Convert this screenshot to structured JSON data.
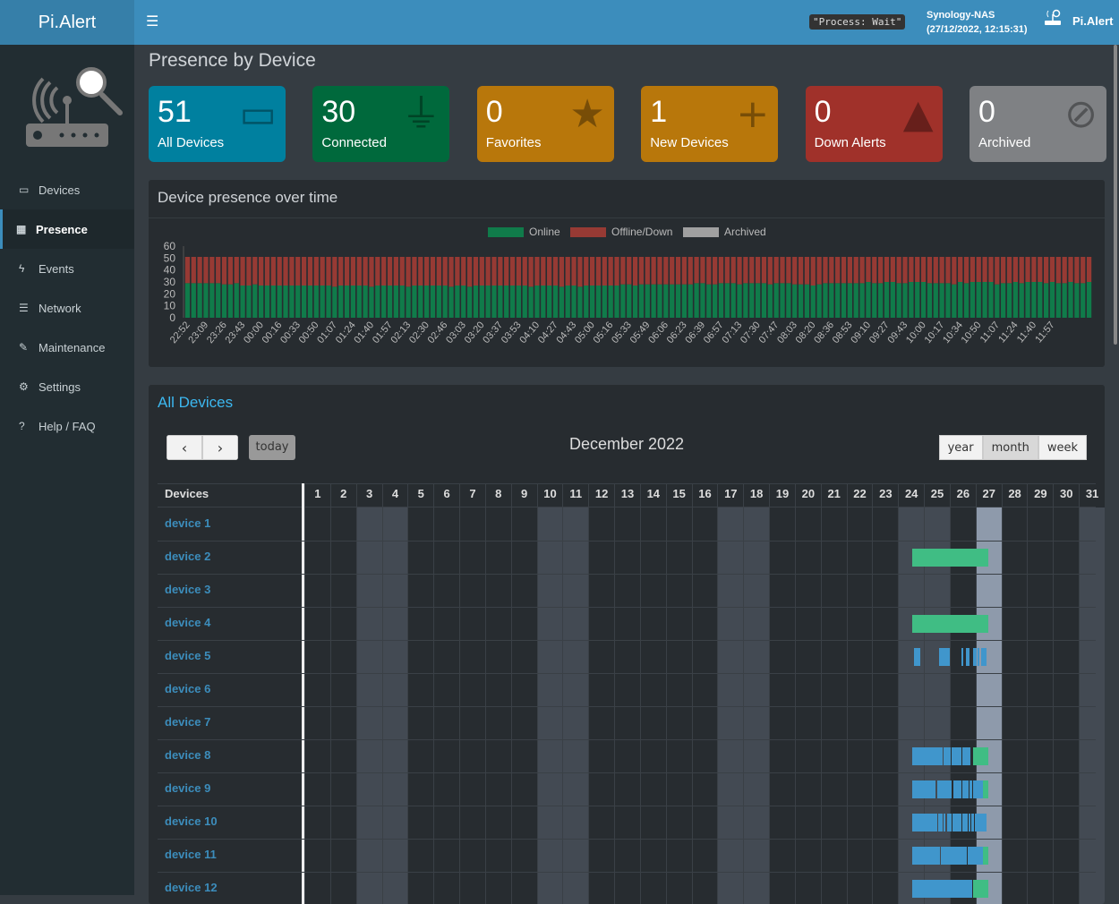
{
  "header": {
    "app_name": "Pi.Alert",
    "status": "\"Process: Wait\"",
    "host": "Synology-NAS",
    "datetime": "(27/12/2022, 12:15:31)",
    "user": "Pi.Alert"
  },
  "sidebar": {
    "items": [
      {
        "label": "Devices",
        "icon": "laptop-icon"
      },
      {
        "label": "Presence",
        "icon": "calendar-icon",
        "active": true
      },
      {
        "label": "Events",
        "icon": "bolt-icon"
      },
      {
        "label": "Network",
        "icon": "server-icon"
      },
      {
        "label": "Maintenance",
        "icon": "wrench-icon"
      },
      {
        "label": "Settings",
        "icon": "gear-icon"
      },
      {
        "label": "Help / FAQ",
        "icon": "question-icon"
      }
    ]
  },
  "page_title": "Presence by Device",
  "cards": [
    {
      "value": "51",
      "label": "All Devices",
      "icon": "laptop-icon",
      "color": "#00809f"
    },
    {
      "value": "30",
      "label": "Connected",
      "icon": "plug-icon",
      "color": "#00693c"
    },
    {
      "value": "0",
      "label": "Favorites",
      "icon": "star-icon",
      "color": "#b8770b"
    },
    {
      "value": "1",
      "label": "New Devices",
      "icon": "plus-icon",
      "color": "#b8770b"
    },
    {
      "value": "0",
      "label": "Down Alerts",
      "icon": "warning-icon",
      "color": "#a0312a"
    },
    {
      "value": "0",
      "label": "Archived",
      "icon": "eye-slash-icon",
      "color": "#7f8184"
    }
  ],
  "chart_box": {
    "title": "Device presence over time"
  },
  "chart_data": {
    "type": "bar",
    "stacked": true,
    "ylim": [
      0,
      60
    ],
    "yticks": [
      0,
      10,
      20,
      30,
      40,
      50,
      60
    ],
    "legend": "top",
    "series": [
      {
        "name": "Online",
        "color": "#107b4a",
        "values": [
          29,
          29,
          29,
          29,
          29,
          29,
          28,
          28,
          29,
          27,
          27,
          28,
          27,
          27,
          27,
          27,
          27,
          27,
          27,
          27,
          27,
          27,
          27,
          27,
          26,
          27,
          27,
          27,
          27,
          27,
          26,
          27,
          27,
          27,
          27,
          27,
          26,
          27,
          27,
          27,
          27,
          27,
          27,
          26,
          27,
          27,
          26,
          27,
          27,
          27,
          27,
          27,
          27,
          27,
          27,
          27,
          26,
          27,
          27,
          27,
          27,
          26,
          27,
          27,
          26,
          27,
          27,
          27,
          27,
          27,
          27,
          28,
          28,
          27,
          28,
          28,
          28,
          28,
          28,
          28,
          28,
          28,
          28,
          29,
          29,
          28,
          28,
          29,
          29,
          29,
          28,
          29,
          29,
          29,
          29,
          28,
          29,
          29,
          29,
          28,
          28,
          28,
          27,
          28,
          29,
          29,
          29,
          29,
          29,
          29,
          29,
          30,
          29,
          29,
          30,
          30,
          29,
          29,
          30,
          30,
          30,
          29,
          29,
          29,
          29,
          28,
          30,
          29,
          30,
          30,
          30,
          30,
          28,
          29,
          29,
          30,
          29,
          30,
          30,
          30,
          29,
          30,
          29,
          29,
          30,
          29,
          29,
          30
        ]
      },
      {
        "name": "Offline/Down",
        "color": "#973a34",
        "values": [
          22,
          22,
          22,
          22,
          22,
          22,
          23,
          23,
          22,
          24,
          24,
          23,
          24,
          24,
          24,
          24,
          24,
          24,
          24,
          24,
          24,
          24,
          24,
          24,
          25,
          24,
          24,
          24,
          24,
          24,
          25,
          24,
          24,
          24,
          24,
          24,
          25,
          24,
          24,
          24,
          24,
          24,
          24,
          25,
          24,
          24,
          25,
          24,
          24,
          24,
          24,
          24,
          24,
          24,
          24,
          24,
          25,
          24,
          24,
          24,
          24,
          25,
          24,
          24,
          25,
          24,
          24,
          24,
          24,
          24,
          24,
          23,
          23,
          24,
          23,
          23,
          23,
          23,
          23,
          23,
          23,
          23,
          23,
          22,
          22,
          23,
          23,
          22,
          22,
          22,
          23,
          22,
          22,
          22,
          22,
          23,
          22,
          22,
          22,
          23,
          23,
          23,
          24,
          23,
          22,
          22,
          22,
          22,
          22,
          22,
          22,
          21,
          22,
          22,
          21,
          21,
          22,
          22,
          21,
          21,
          21,
          22,
          22,
          22,
          22,
          23,
          21,
          22,
          21,
          21,
          21,
          21,
          23,
          22,
          22,
          21,
          22,
          21,
          21,
          21,
          22,
          21,
          22,
          22,
          21,
          22,
          22,
          21
        ]
      },
      {
        "name": "Archived",
        "color": "#a0a0a0",
        "values": []
      }
    ],
    "x_tick_labels": [
      "22:52",
      "23:09",
      "23:26",
      "23:43",
      "00:00",
      "00:16",
      "00:33",
      "00:50",
      "01:07",
      "01:24",
      "01:40",
      "01:57",
      "02:13",
      "02:30",
      "02:46",
      "03:03",
      "03:20",
      "03:37",
      "03:53",
      "04:10",
      "04:27",
      "04:43",
      "05:00",
      "05:16",
      "05:33",
      "05:49",
      "06:06",
      "06:23",
      "06:39",
      "06:57",
      "07:13",
      "07:30",
      "07:47",
      "08:03",
      "08:20",
      "08:36",
      "08:53",
      "09:10",
      "09:27",
      "09:43",
      "10:00",
      "10:17",
      "10:34",
      "10:50",
      "11:07",
      "11:24",
      "11:40",
      "11:57"
    ]
  },
  "calendar": {
    "title": "All Devices",
    "month": "December 2022",
    "today_label": "today",
    "prev": "‹",
    "next": "›",
    "views": [
      "year",
      "month",
      "week"
    ],
    "active_view": "month",
    "devices_header": "Devices",
    "days": 31,
    "weekend_days": [
      3,
      4,
      10,
      11,
      17,
      18,
      24,
      25,
      31
    ],
    "today": 27,
    "colors": {
      "connected": "#40bd84",
      "event": "#4096cc"
    },
    "devices": [
      {
        "name": "device 1",
        "events": []
      },
      {
        "name": "device 2",
        "events": [
          [
            24.54,
            27.49,
            "connected"
          ]
        ]
      },
      {
        "name": "device 3",
        "events": []
      },
      {
        "name": "device 4",
        "events": [
          [
            24.54,
            27.49,
            "connected"
          ]
        ]
      },
      {
        "name": "device 5",
        "events": [
          [
            24.6,
            24.85,
            "event"
          ],
          [
            25.58,
            26.0,
            "event"
          ],
          [
            26.46,
            26.53,
            "event"
          ],
          [
            26.63,
            26.77,
            "event"
          ],
          [
            26.91,
            27.05,
            "event"
          ],
          [
            27.09,
            27.16,
            "event"
          ],
          [
            27.2,
            27.41,
            "event"
          ]
        ]
      },
      {
        "name": "device 6",
        "events": []
      },
      {
        "name": "device 7",
        "events": []
      },
      {
        "name": "device 8",
        "events": [
          [
            24.54,
            25.72,
            "event"
          ],
          [
            25.76,
            26.04,
            "event"
          ],
          [
            26.07,
            26.46,
            "event"
          ],
          [
            26.49,
            26.81,
            "event"
          ],
          [
            26.91,
            27.49,
            "connected"
          ]
        ]
      },
      {
        "name": "device 9",
        "events": [
          [
            24.54,
            25.44,
            "event"
          ],
          [
            25.51,
            26.07,
            "event"
          ],
          [
            26.14,
            26.46,
            "event"
          ],
          [
            26.49,
            26.74,
            "event"
          ],
          [
            26.77,
            26.88,
            "event"
          ],
          [
            26.91,
            27.27,
            "event"
          ],
          [
            27.3,
            27.49,
            "connected"
          ]
        ]
      },
      {
        "name": "device 10",
        "events": [
          [
            24.54,
            25.51,
            "event"
          ],
          [
            25.55,
            25.72,
            "event"
          ],
          [
            25.76,
            25.83,
            "event"
          ],
          [
            25.9,
            26.07,
            "event"
          ],
          [
            26.11,
            26.46,
            "event"
          ],
          [
            26.49,
            26.7,
            "event"
          ],
          [
            26.74,
            26.81,
            "event"
          ],
          [
            26.84,
            26.95,
            "event"
          ],
          [
            26.98,
            27.27,
            "event"
          ],
          [
            27.29,
            27.34,
            "event"
          ],
          [
            27.37,
            27.44,
            "event"
          ]
        ]
      },
      {
        "name": "device 11",
        "events": [
          [
            24.54,
            25.62,
            "event"
          ],
          [
            25.65,
            26.67,
            "event"
          ],
          [
            26.7,
            27.27,
            "event"
          ],
          [
            27.3,
            27.49,
            "connected"
          ]
        ]
      },
      {
        "name": "device 12",
        "events": [
          [
            24.54,
            26.88,
            "event"
          ],
          [
            26.91,
            27.49,
            "connected"
          ]
        ]
      }
    ]
  }
}
